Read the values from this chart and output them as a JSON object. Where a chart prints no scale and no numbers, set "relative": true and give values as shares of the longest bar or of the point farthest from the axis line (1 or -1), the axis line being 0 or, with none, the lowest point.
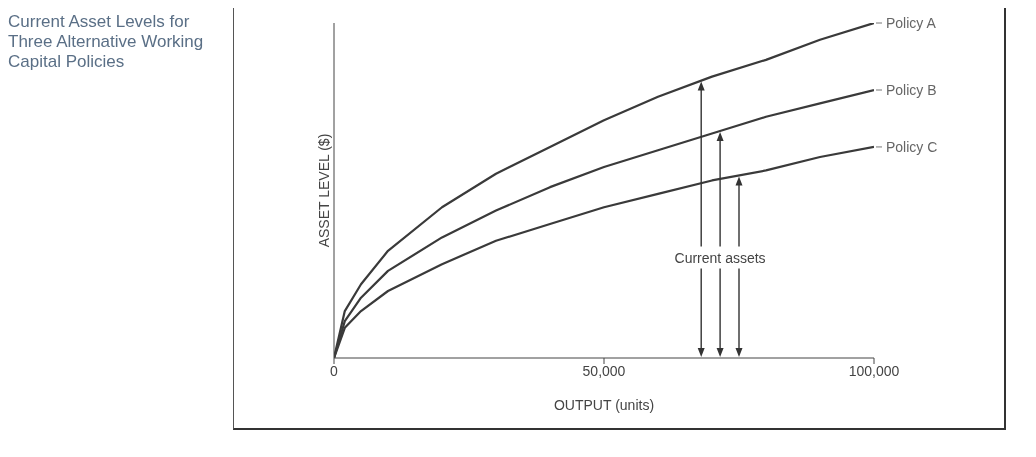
{
  "chart_data": {
    "type": "line",
    "title": "Current Asset Levels for Three Alternative Working Capital Policies",
    "xlabel": "OUTPUT (units)",
    "ylabel": "ASSET LEVEL ($)",
    "relative": true,
    "x": [
      0,
      2000,
      5000,
      10000,
      20000,
      30000,
      40000,
      50000,
      60000,
      70000,
      80000,
      90000,
      100000
    ],
    "series": [
      {
        "name": "Policy A",
        "color": "#3a3a3a",
        "values": [
          0,
          0.14,
          0.22,
          0.32,
          0.45,
          0.55,
          0.63,
          0.71,
          0.78,
          0.84,
          0.89,
          0.95,
          1
        ]
      },
      {
        "name": "Policy B",
        "color": "#3a3a3a",
        "values": [
          0,
          0.11,
          0.18,
          0.26,
          0.36,
          0.44,
          0.51,
          0.57,
          0.62,
          0.67,
          0.72,
          0.76,
          0.8
        ]
      },
      {
        "name": "Policy C",
        "color": "#3a3a3a",
        "values": [
          0,
          0.09,
          0.14,
          0.2,
          0.28,
          0.35,
          0.4,
          0.45,
          0.49,
          0.53,
          0.56,
          0.6,
          0.63
        ]
      }
    ],
    "xlim": [
      0,
      100000
    ],
    "xticks": [
      0,
      {
        "value": 50000,
        "label": "50,000"
      },
      {
        "value": 100000,
        "label": "100,000"
      }
    ],
    "annotations": [
      "Current assets"
    ],
    "tick_labels": "x",
    "grid": false,
    "legend": false,
    "marker": "none",
    "line_style": "solid"
  }
}
